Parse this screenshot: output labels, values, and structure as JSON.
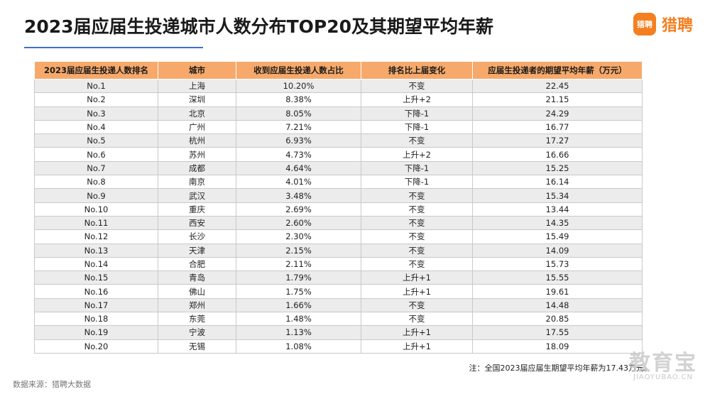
{
  "title": "2023届应届生投递城市人数分布TOP20及其期望平均年薪",
  "logo": {
    "badge": "猎聘",
    "text": "猎聘",
    "color": "#f47f20"
  },
  "accent_rule_color": "#3b6fd1",
  "header_color": "#f6a96b",
  "table": {
    "headers": [
      "2023届应届生投递人数排名",
      "城市",
      "收到应届生投递人数占比",
      "排名比上届变化",
      "应届生投递者的期望平均年薪（万元）"
    ],
    "rows": [
      [
        "No.1",
        "上海",
        "10.20%",
        "不变",
        "22.45"
      ],
      [
        "No.2",
        "深圳",
        "8.38%",
        "上升+2",
        "21.15"
      ],
      [
        "No.3",
        "北京",
        "8.05%",
        "下降-1",
        "24.29"
      ],
      [
        "No.4",
        "广州",
        "7.21%",
        "下降-1",
        "16.77"
      ],
      [
        "No.5",
        "杭州",
        "6.93%",
        "不变",
        "17.27"
      ],
      [
        "No.6",
        "苏州",
        "4.73%",
        "上升+2",
        "16.66"
      ],
      [
        "No.7",
        "成都",
        "4.64%",
        "下降-1",
        "15.25"
      ],
      [
        "No.8",
        "南京",
        "4.01%",
        "下降-1",
        "16.14"
      ],
      [
        "No.9",
        "武汉",
        "3.48%",
        "不变",
        "15.34"
      ],
      [
        "No.10",
        "重庆",
        "2.69%",
        "不变",
        "13.44"
      ],
      [
        "No.11",
        "西安",
        "2.60%",
        "不变",
        "14.35"
      ],
      [
        "No.12",
        "长沙",
        "2.30%",
        "不变",
        "15.49"
      ],
      [
        "No.13",
        "天津",
        "2.15%",
        "不变",
        "14.09"
      ],
      [
        "No.14",
        "合肥",
        "2.11%",
        "不变",
        "15.73"
      ],
      [
        "No.15",
        "青岛",
        "1.79%",
        "上升+1",
        "15.55"
      ],
      [
        "No.16",
        "佛山",
        "1.75%",
        "上升+1",
        "19.61"
      ],
      [
        "No.17",
        "郑州",
        "1.66%",
        "不变",
        "14.48"
      ],
      [
        "No.18",
        "东莞",
        "1.48%",
        "不变",
        "20.85"
      ],
      [
        "No.19",
        "宁波",
        "1.13%",
        "上升+1",
        "17.55"
      ],
      [
        "No.20",
        "无锡",
        "1.08%",
        "上升+1",
        "18.09"
      ]
    ]
  },
  "note": "注：全国2023届应届生期望平均年薪为17.43万元。",
  "source": "数据来源：猎聘大数据",
  "watermark": {
    "cn": "教育宝",
    "en": "JIAOYUBAO.CN"
  }
}
